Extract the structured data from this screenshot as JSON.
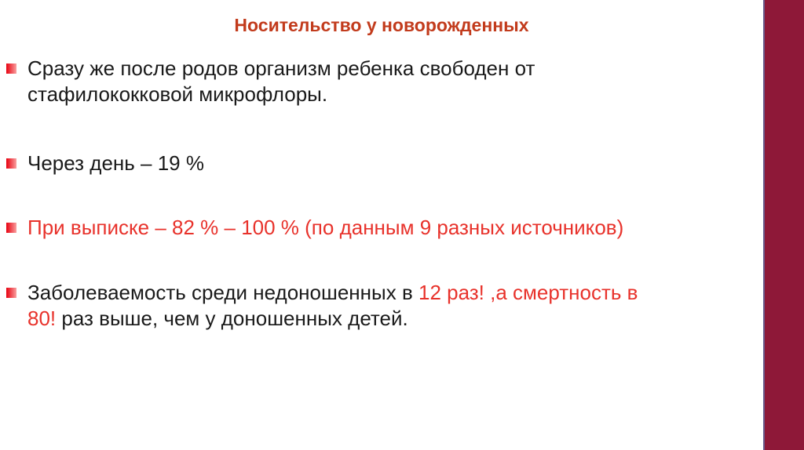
{
  "title": "Носительство у новорожденных",
  "accent_color": "#8e1838",
  "bullets": [
    {
      "icon": "square-bullet-icon",
      "line1": "Сразу же после родов организм ребенка свободен от",
      "line2": "стафилококковой микрофлоры."
    },
    {
      "icon": "square-bullet-icon",
      "text": "Через день – 19 %"
    },
    {
      "icon": "square-bullet-icon",
      "text": "При выписке – 82 % – 100 % (по данным 9 разных источников)"
    },
    {
      "icon": "square-bullet-icon",
      "part1": "Заболеваемость среди недоношенных в ",
      "part2": "12 раз! ,а смертность в",
      "part3": "80!",
      "part4": " раз выше, чем у доношенных детей."
    }
  ]
}
